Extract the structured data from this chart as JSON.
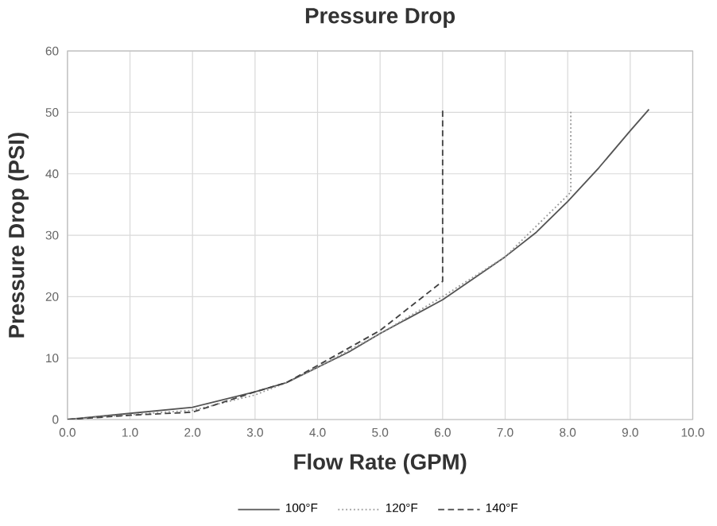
{
  "chart_data": {
    "type": "line",
    "title": "Pressure Drop",
    "xlabel": "Flow Rate (GPM)",
    "ylabel": "Pressure Drop (PSI)",
    "xlim": [
      0,
      10
    ],
    "ylim": [
      0,
      60
    ],
    "xticks": [
      {
        "value": 0,
        "label": "0.0"
      },
      {
        "value": 1,
        "label": "1.0"
      },
      {
        "value": 2,
        "label": "2.0"
      },
      {
        "value": 3,
        "label": "3.0"
      },
      {
        "value": 4,
        "label": "4.0"
      },
      {
        "value": 5,
        "label": "5.0"
      },
      {
        "value": 6,
        "label": "6.0"
      },
      {
        "value": 7,
        "label": "7.0"
      },
      {
        "value": 8,
        "label": "8.0"
      },
      {
        "value": 9,
        "label": "9.0"
      },
      {
        "value": 10,
        "label": "10.0"
      }
    ],
    "yticks": [
      0,
      10,
      20,
      30,
      40,
      50,
      60
    ],
    "grid": true,
    "legend": "bottom",
    "marker": "none",
    "series": [
      {
        "name": "100°F",
        "color": "#555555",
        "line_style": "solid",
        "x": [
          0,
          1,
          2,
          3,
          3.5,
          4,
          4.5,
          5,
          6,
          7,
          7.5,
          8,
          8.5,
          9,
          9.3
        ],
        "values": [
          0,
          1,
          2,
          4.5,
          6,
          8.5,
          11,
          14,
          19.5,
          26.5,
          30.5,
          35.5,
          41,
          47,
          50.5
        ]
      },
      {
        "name": "120°F",
        "color": "#999999",
        "line_style": "dotted",
        "x": [
          0,
          1,
          2,
          3,
          3.5,
          4,
          5,
          6,
          7,
          8.05,
          8.05
        ],
        "values": [
          0,
          0.8,
          1.5,
          4,
          6,
          8.5,
          14,
          20,
          26.5,
          37,
          50.5
        ]
      },
      {
        "name": "140°F",
        "color": "#444444",
        "line_style": "dashed",
        "x": [
          0,
          1,
          2,
          3,
          3.5,
          4,
          5,
          6,
          6
        ],
        "values": [
          0,
          0.7,
          1.2,
          4.5,
          6,
          8.8,
          14.5,
          22.5,
          50.5
        ]
      }
    ]
  }
}
